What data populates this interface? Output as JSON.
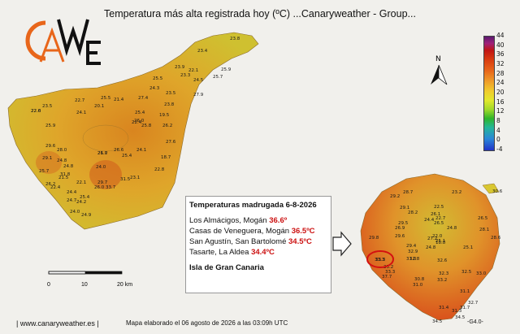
{
  "header": {
    "title": "Temperatura más alta registrada hoy (ºC)      ...Canaryweather - Group..."
  },
  "logo": {
    "letters": "CAWE"
  },
  "legend": {
    "ticks": [
      "44",
      "40",
      "36",
      "32",
      "28",
      "24",
      "20",
      "16",
      "12",
      "8",
      "4",
      "0",
      "-4"
    ],
    "colors": {
      "max": "#5a1a6e",
      "hot": "#c01515",
      "warm": "#efa02a",
      "mild": "#e2e82c",
      "cool": "#2fb52a",
      "cold": "#2233c8"
    }
  },
  "north": {
    "label": "N"
  },
  "scale": {
    "labels": [
      "0",
      "10",
      "20 km"
    ]
  },
  "infobox": {
    "title": "Temperaturas madrugada 6-8-2026",
    "rows": [
      {
        "place": "Los Almácigos, Mogán ",
        "value": "36.6º"
      },
      {
        "place": "Casas de Veneguera, Mogán ",
        "value": "36.5ºC"
      },
      {
        "place": "San Agustín, San Bartolomé ",
        "value": "34.5ºC"
      },
      {
        "place": "Tasarte, La Aldea ",
        "value": "34.4ºC"
      }
    ],
    "island": "Isla de Gran Canaria"
  },
  "tenerife_labels": [
    "23.8",
    "23.4",
    "22.1",
    "24.5",
    "25.9",
    "25.7",
    "23.9",
    "25.5",
    "24.3",
    "23.5",
    "25.5",
    "27.4",
    "25.4",
    "20.1",
    "23.5",
    "22.6",
    "24.1",
    "21.4",
    "22.7",
    "26.0",
    "23.3",
    "27.9",
    "23.8",
    "25.9",
    "19.5",
    "22.4",
    "22.0",
    "26.2",
    "26.7",
    "25.8",
    "21.0",
    "25.4",
    "24.8",
    "29.1",
    "18.7",
    "27.6",
    "29.6",
    "24.1",
    "28.0",
    "24.8",
    "22.8",
    "31.5",
    "26.0",
    "24.0",
    "21.5",
    "25.7",
    "22.1",
    "26.2",
    "31.8",
    "26.6",
    "29.7",
    "33.7",
    "24.4",
    "23.1",
    "22.4",
    "24.7",
    "25.4",
    "24.2",
    "24.0",
    "24.9"
  ],
  "grancanaria_labels": [
    "29.2",
    "28.7",
    "22.5",
    "29.1",
    "28.2",
    "26.1",
    "23.2",
    "22.7",
    "30.6",
    "24.4",
    "26.5",
    "26.5",
    "29.5",
    "24.8",
    "26.9",
    "29.6",
    "22.0",
    "27.2",
    "28.1",
    "28.6",
    "29.8",
    "25.1",
    "24.8",
    "25.1",
    "29.4",
    "32.9",
    "31.0",
    "18.8",
    "33.3",
    "33.2",
    "33.3",
    "32.8",
    "32.6",
    "32.5",
    "37.7",
    "32.3",
    "33.0",
    "30.8",
    "31.0",
    "33.2",
    "31.1",
    "31.4",
    "31.7",
    "31.3",
    "32.7",
    "34.5",
    "34.5"
  ],
  "highlight": {
    "value": "33.3"
  },
  "footer": {
    "site": "|  www.canaryweather.es  |",
    "note": "Mapa elaborado el 06 agosto de 2026 a las 03:09h UTC",
    "code": "-G4.0-"
  }
}
